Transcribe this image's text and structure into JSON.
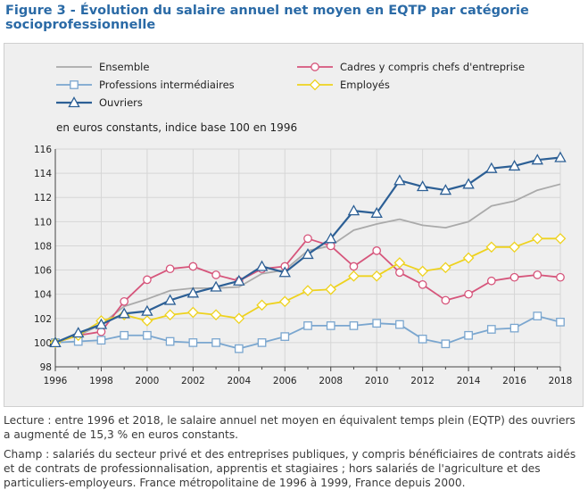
{
  "title": "Figure 3 - Évolution du salaire annuel net moyen en EQTP par catégorie socioprofessionnelle",
  "lecture": "Lecture : entre 1996 et 2018, le salaire annuel net moyen en équivalent temps plein (EQTP) des ouvriers a augmenté de 15,3 % en euros constants.",
  "champ": "Champ : salariés du secteur privé et des entreprises publiques, y compris bénéficiaires de contrats aidés et de contrats de professionnalisation, apprentis et stagiaires ; hors salariés de l'agriculture et des particuliers-employeurs. France métropolitaine de 1996 à 1999, France depuis 2000.",
  "chart_data": {
    "type": "line",
    "subtitle": "en euros constants, indice base 100 en 1996",
    "x": [
      1996,
      1997,
      1998,
      1999,
      2000,
      2001,
      2002,
      2003,
      2004,
      2005,
      2006,
      2007,
      2008,
      2009,
      2010,
      2011,
      2012,
      2013,
      2014,
      2015,
      2016,
      2017,
      2018
    ],
    "x_ticks": [
      "1996",
      "1998",
      "2000",
      "2002",
      "2004",
      "2006",
      "2008",
      "2010",
      "2012",
      "2014",
      "2016",
      "2018"
    ],
    "y_ticks": [
      "98",
      "100",
      "102",
      "104",
      "106",
      "108",
      "110",
      "112",
      "114",
      "116"
    ],
    "ylim": [
      98,
      116
    ],
    "xlim": [
      1996,
      2018
    ],
    "grid": true,
    "legend_position": "top",
    "series": [
      {
        "name": "Ensemble",
        "color": "#aaaaaa",
        "marker": "none",
        "values": [
          100,
          100.6,
          101.5,
          103.0,
          103.6,
          104.3,
          104.5,
          104.5,
          104.6,
          105.7,
          106.0,
          107.6,
          108.0,
          109.3,
          109.8,
          110.2,
          109.7,
          109.5,
          110.0,
          111.3,
          111.7,
          112.6,
          113.1
        ]
      },
      {
        "name": "Cadres y compris chefs d'entreprise",
        "color": "#d6557b",
        "marker": "circle",
        "values": [
          100,
          100.6,
          100.9,
          103.4,
          105.2,
          106.1,
          106.3,
          105.6,
          105.1,
          106.1,
          106.3,
          108.6,
          108.0,
          106.3,
          107.6,
          105.8,
          104.8,
          103.5,
          104.0,
          105.1,
          105.4,
          105.6,
          105.4
        ]
      },
      {
        "name": "Professions intermédiaires",
        "color": "#7aa6cf",
        "marker": "square",
        "values": [
          100,
          100.1,
          100.2,
          100.6,
          100.6,
          100.1,
          100.0,
          100.0,
          99.5,
          100.0,
          100.5,
          101.4,
          101.4,
          101.4,
          101.6,
          101.5,
          100.3,
          99.9,
          100.6,
          101.1,
          101.2,
          102.2,
          101.7
        ]
      },
      {
        "name": "Employés",
        "color": "#eed21e",
        "marker": "diamond",
        "values": [
          100,
          100.6,
          101.8,
          102.3,
          101.8,
          102.3,
          102.5,
          102.3,
          102.0,
          103.1,
          103.4,
          104.3,
          104.4,
          105.5,
          105.5,
          106.6,
          105.9,
          106.2,
          107.0,
          107.9,
          107.9,
          108.6,
          108.6
        ]
      },
      {
        "name": "Ouvriers",
        "color": "#2c5f95",
        "marker": "triangle",
        "values": [
          100,
          100.8,
          101.5,
          102.4,
          102.6,
          103.5,
          104.1,
          104.6,
          105.1,
          106.3,
          105.8,
          107.3,
          108.6,
          110.9,
          110.7,
          113.4,
          112.9,
          112.6,
          113.1,
          114.4,
          114.6,
          115.1,
          115.3
        ]
      }
    ]
  }
}
